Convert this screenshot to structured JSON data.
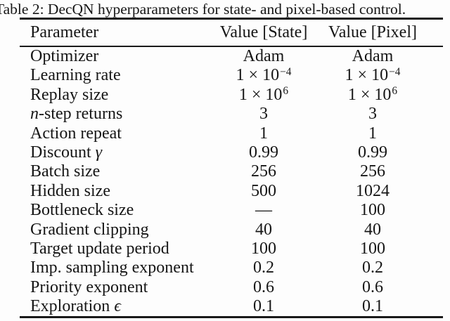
{
  "title": "Table 2: DecQN hyperparameters for state- and pixel-based control.",
  "colors": {
    "background": "#fdfdfd",
    "text": "#161616",
    "rule": "#1a1a1a"
  },
  "table": {
    "columns": [
      "Parameter",
      "Value [State]",
      "Value [Pixel]"
    ],
    "rows": [
      {
        "param": [
          {
            "t": "Optimizer"
          }
        ],
        "state": [
          {
            "t": "Adam"
          }
        ],
        "pixel": [
          {
            "t": "Adam"
          }
        ]
      },
      {
        "param": [
          {
            "t": "Learning rate"
          }
        ],
        "state": [
          {
            "t": "1 × 10"
          },
          {
            "t": "−4",
            "sup": true
          }
        ],
        "pixel": [
          {
            "t": "1 × 10"
          },
          {
            "t": "−4",
            "sup": true
          }
        ]
      },
      {
        "param": [
          {
            "t": "Replay size"
          }
        ],
        "state": [
          {
            "t": "1 × 10"
          },
          {
            "t": "6",
            "sup": true
          }
        ],
        "pixel": [
          {
            "t": "1 × 10"
          },
          {
            "t": "6",
            "sup": true
          }
        ]
      },
      {
        "param": [
          {
            "t": "n",
            "i": true
          },
          {
            "t": "-step returns"
          }
        ],
        "state": [
          {
            "t": "3"
          }
        ],
        "pixel": [
          {
            "t": "3"
          }
        ]
      },
      {
        "param": [
          {
            "t": "Action repeat"
          }
        ],
        "state": [
          {
            "t": "1"
          }
        ],
        "pixel": [
          {
            "t": "1"
          }
        ]
      },
      {
        "param": [
          {
            "t": "Discount "
          },
          {
            "t": "γ",
            "i": true
          }
        ],
        "state": [
          {
            "t": "0.99"
          }
        ],
        "pixel": [
          {
            "t": "0.99"
          }
        ]
      },
      {
        "param": [
          {
            "t": "Batch size"
          }
        ],
        "state": [
          {
            "t": "256"
          }
        ],
        "pixel": [
          {
            "t": "256"
          }
        ]
      },
      {
        "param": [
          {
            "t": "Hidden size"
          }
        ],
        "state": [
          {
            "t": "500"
          }
        ],
        "pixel": [
          {
            "t": "1024"
          }
        ]
      },
      {
        "param": [
          {
            "t": "Bottleneck size"
          }
        ],
        "state": [
          {
            "t": "—"
          }
        ],
        "pixel": [
          {
            "t": "100"
          }
        ]
      },
      {
        "param": [
          {
            "t": "Gradient clipping"
          }
        ],
        "state": [
          {
            "t": "40"
          }
        ],
        "pixel": [
          {
            "t": "40"
          }
        ]
      },
      {
        "param": [
          {
            "t": "Target update period"
          }
        ],
        "state": [
          {
            "t": "100"
          }
        ],
        "pixel": [
          {
            "t": "100"
          }
        ]
      },
      {
        "param": [
          {
            "t": "Imp. sampling exponent"
          }
        ],
        "state": [
          {
            "t": "0.2"
          }
        ],
        "pixel": [
          {
            "t": "0.2"
          }
        ]
      },
      {
        "param": [
          {
            "t": "Priority exponent"
          }
        ],
        "state": [
          {
            "t": "0.6"
          }
        ],
        "pixel": [
          {
            "t": "0.6"
          }
        ]
      },
      {
        "param": [
          {
            "t": "Exploration "
          },
          {
            "t": "ϵ",
            "i": true
          }
        ],
        "state": [
          {
            "t": "0.1"
          }
        ],
        "pixel": [
          {
            "t": "0.1"
          }
        ]
      }
    ]
  }
}
